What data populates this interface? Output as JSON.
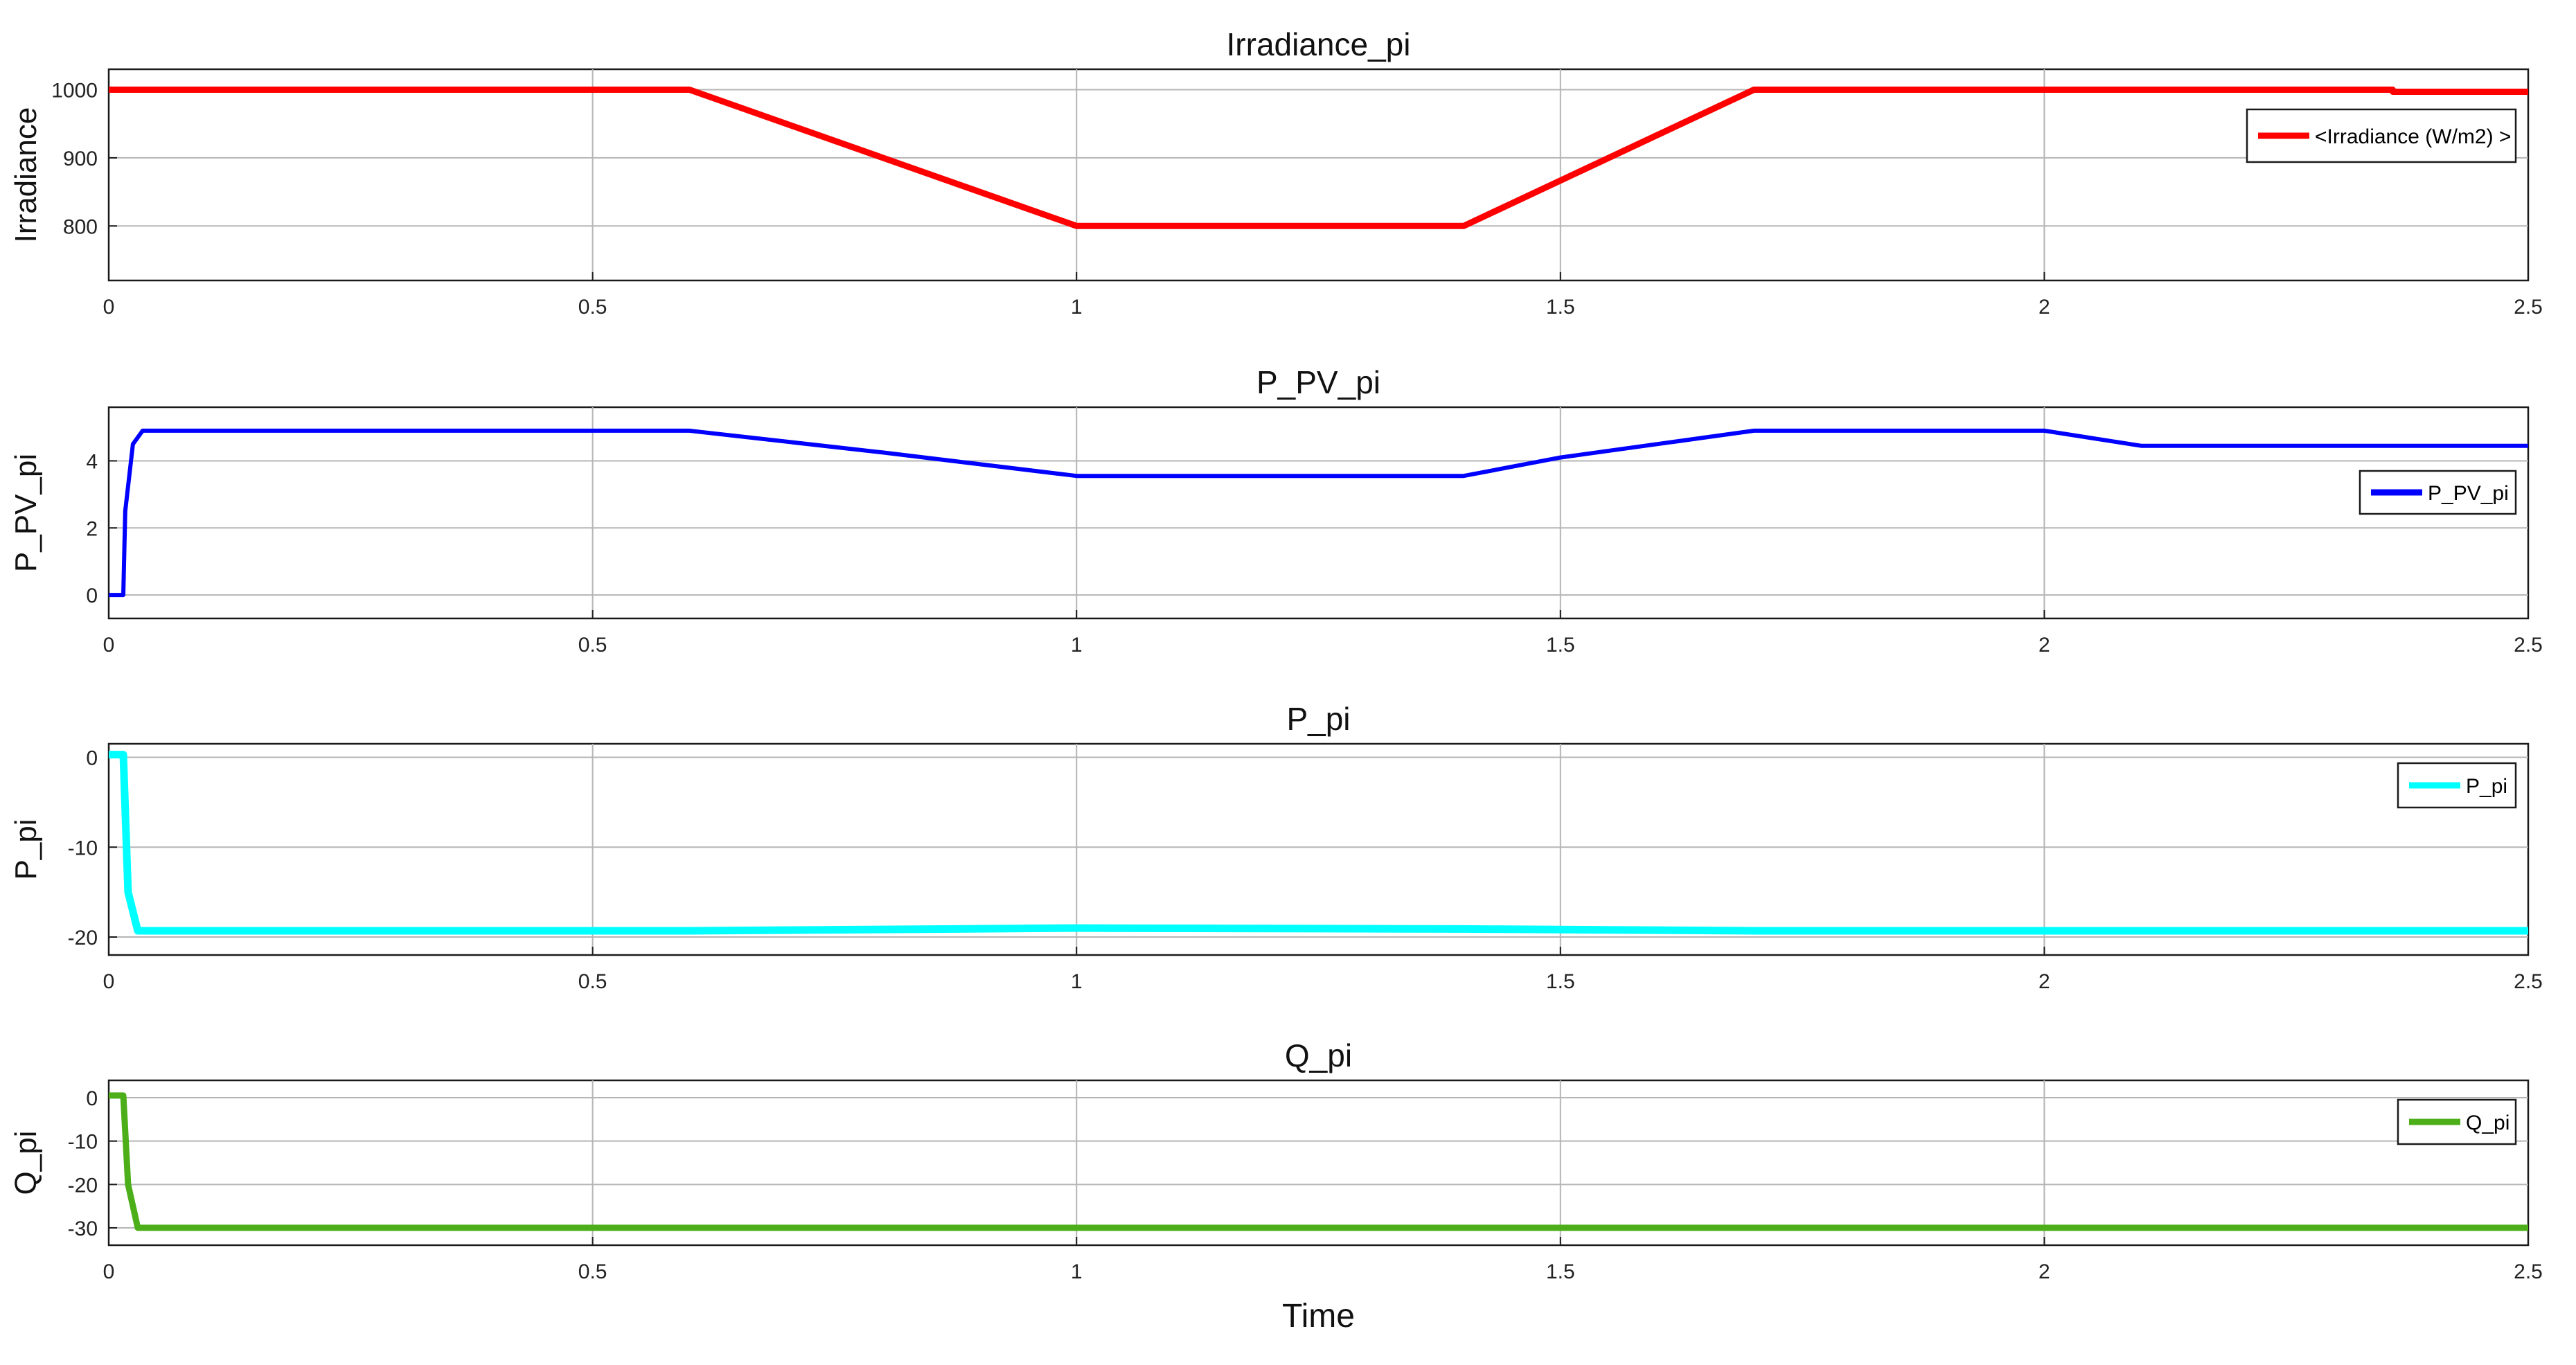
{
  "chart_data": [
    {
      "type": "line",
      "title": "Irradiance_pi",
      "ylabel": "Irradiance",
      "xlabel": "",
      "xlim": [
        0,
        2.5
      ],
      "ylim": [
        720,
        1030
      ],
      "xticks": [
        0,
        0.5,
        1,
        1.5,
        2,
        2.5
      ],
      "xtick_labels": [
        "0",
        "0.5",
        "1",
        "1.5",
        "2",
        "2.5"
      ],
      "yticks": [
        800,
        900,
        1000
      ],
      "ytick_labels": [
        "800",
        "900",
        "1000"
      ],
      "grid": true,
      "legend_position": "top-right",
      "series": [
        {
          "name": "<Irradiance (W/m2) >",
          "color": "#ff0000",
          "x": [
            0,
            0.6,
            1.0,
            1.4,
            1.7,
            2.36,
            2.36,
            2.5
          ],
          "y": [
            1000,
            1000,
            800,
            800,
            1000,
            1000,
            997,
            997
          ]
        }
      ]
    },
    {
      "type": "line",
      "title": "P_PV_pi",
      "ylabel": "P_PV_pi",
      "xlabel": "",
      "xlim": [
        0,
        2.5
      ],
      "ylim": [
        -0.7,
        5.6
      ],
      "xticks": [
        0,
        0.5,
        1,
        1.5,
        2,
        2.5
      ],
      "xtick_labels": [
        "0",
        "0.5",
        "1",
        "1.5",
        "2",
        "2.5"
      ],
      "yticks": [
        0,
        2,
        4
      ],
      "ytick_labels": [
        "0",
        "2",
        "4"
      ],
      "grid": true,
      "legend_position": "top-right",
      "series": [
        {
          "name": "P_PV_pi",
          "color": "#0000ff",
          "x": [
            0,
            0.015,
            0.017,
            0.025,
            0.035,
            0.6,
            0.8,
            1.0,
            1.4,
            1.5,
            1.7,
            2.0,
            2.1,
            2.5
          ],
          "y": [
            0,
            0,
            2.5,
            4.5,
            4.9,
            4.9,
            4.25,
            3.55,
            3.55,
            4.1,
            4.9,
            4.9,
            4.45,
            4.45
          ]
        }
      ]
    },
    {
      "type": "line",
      "title": "P_pi",
      "ylabel": "P_pi",
      "xlabel": "",
      "xlim": [
        0,
        2.5
      ],
      "ylim": [
        -22,
        1.5
      ],
      "xticks": [
        0,
        0.5,
        1,
        1.5,
        2,
        2.5
      ],
      "xtick_labels": [
        "0",
        "0.5",
        "1",
        "1.5",
        "2",
        "2.5"
      ],
      "yticks": [
        -20,
        -10,
        0
      ],
      "ytick_labels": [
        "-20",
        "-10",
        "0"
      ],
      "grid": true,
      "legend_position": "top-right",
      "series": [
        {
          "name": "P_pi",
          "color": "#00ffff",
          "x": [
            0,
            0.015,
            0.02,
            0.03,
            0.6,
            1.0,
            1.4,
            1.7,
            2.5
          ],
          "y": [
            0.3,
            0.3,
            -15,
            -19.3,
            -19.3,
            -19,
            -19.1,
            -19.3,
            -19.3
          ]
        }
      ]
    },
    {
      "type": "line",
      "title": "Q_pi",
      "ylabel": "Q_pi",
      "xlabel": "Time",
      "xlim": [
        0,
        2.5
      ],
      "ylim": [
        -34,
        4
      ],
      "xticks": [
        0,
        0.5,
        1,
        1.5,
        2,
        2.5
      ],
      "xtick_labels": [
        "0",
        "0.5",
        "1",
        "1.5",
        "2",
        "2.5"
      ],
      "yticks": [
        -30,
        -20,
        -10,
        0
      ],
      "ytick_labels": [
        "-30",
        "-20",
        "-10",
        "0"
      ],
      "grid": true,
      "legend_position": "top-right",
      "series": [
        {
          "name": "Q_pi",
          "color": "#4caf1a",
          "x": [
            0,
            0.015,
            0.02,
            0.03,
            2.5
          ],
          "y": [
            0.5,
            0.5,
            -20,
            -30,
            -30
          ]
        }
      ]
    }
  ]
}
